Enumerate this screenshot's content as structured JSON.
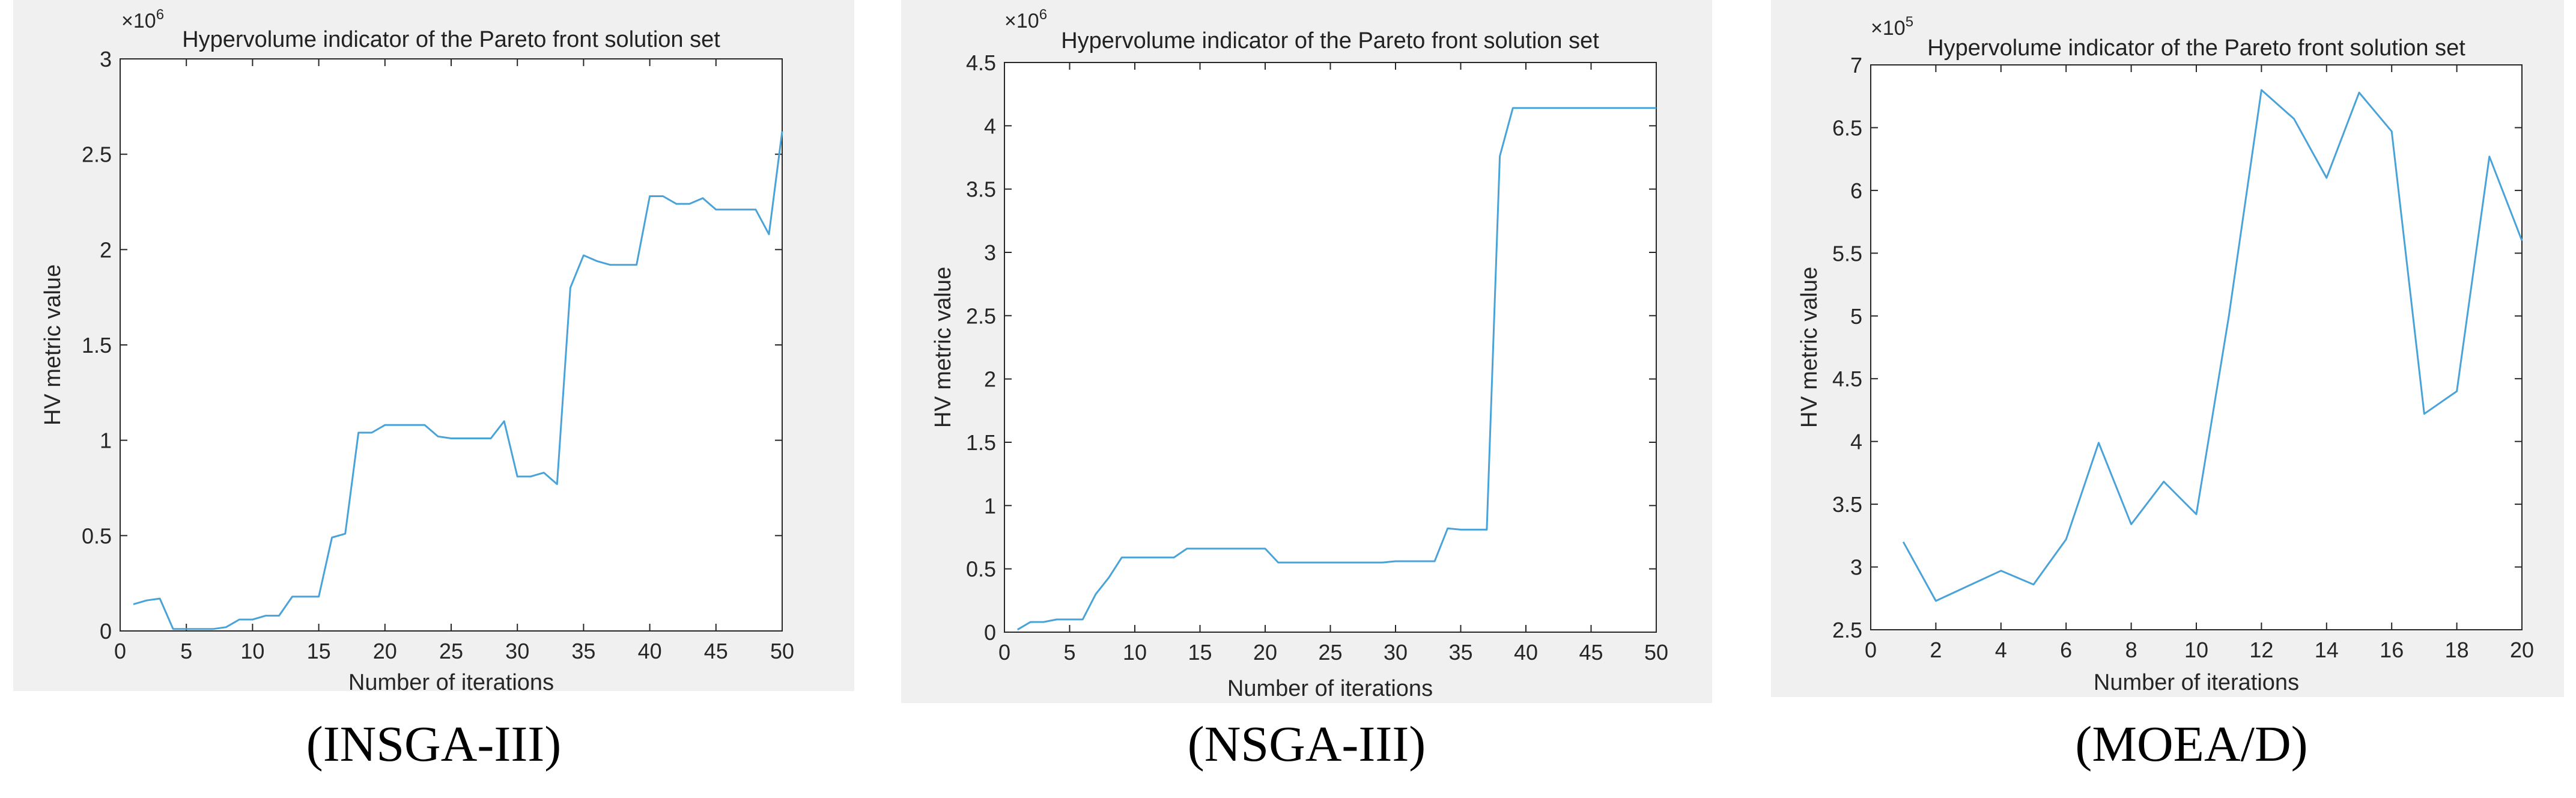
{
  "chart_data": [
    {
      "type": "line",
      "title": "Hypervolume indicator of the Pareto front solution set",
      "xlabel": "Number of iterations",
      "ylabel": "HV metric value",
      "y_exponent": "×10",
      "y_exponent_power": "6",
      "xlim": [
        0,
        50
      ],
      "ylim": [
        0,
        3
      ],
      "xticks": [
        0,
        5,
        10,
        15,
        20,
        25,
        30,
        35,
        40,
        45,
        50
      ],
      "yticks": [
        0,
        0.5,
        1,
        1.5,
        2,
        2.5,
        3
      ],
      "xtick_labels": [
        "0",
        "5",
        "10",
        "15",
        "20",
        "25",
        "30",
        "35",
        "40",
        "45",
        "50"
      ],
      "ytick_labels": [
        "0",
        "0.5",
        "1",
        "1.5",
        "2",
        "2.5",
        "3"
      ],
      "grid": false,
      "line_color": "#4aa3d8",
      "caption": "(INSGA-III)",
      "series": [
        {
          "x": [
            1,
            2,
            3,
            4,
            5,
            6,
            7,
            8,
            9,
            10,
            11,
            12,
            13,
            14,
            15,
            16,
            17,
            18,
            19,
            20,
            21,
            22,
            23,
            24,
            25,
            26,
            27,
            28,
            29,
            30,
            31,
            32,
            33,
            34,
            35,
            36,
            37,
            38,
            39,
            40,
            41,
            42,
            43,
            44,
            45,
            46,
            47,
            48,
            49,
            50
          ],
          "y": [
            0.14,
            0.16,
            0.17,
            0.01,
            0.01,
            0.01,
            0.01,
            0.02,
            0.06,
            0.06,
            0.08,
            0.08,
            0.18,
            0.18,
            0.18,
            0.49,
            0.51,
            1.04,
            1.04,
            1.08,
            1.08,
            1.08,
            1.08,
            1.02,
            1.01,
            1.01,
            1.01,
            1.01,
            1.1,
            0.81,
            0.81,
            0.83,
            0.77,
            1.8,
            1.97,
            1.94,
            1.92,
            1.92,
            1.92,
            2.28,
            2.28,
            2.24,
            2.24,
            2.27,
            2.21,
            2.21,
            2.21,
            2.21,
            2.08,
            2.62
          ]
        }
      ]
    },
    {
      "type": "line",
      "title": "Hypervolume indicator of the Pareto front solution set",
      "xlabel": "Number of iterations",
      "ylabel": "HV metric value",
      "y_exponent": "×10",
      "y_exponent_power": "6",
      "xlim": [
        0,
        50
      ],
      "ylim": [
        0,
        4.5
      ],
      "xticks": [
        0,
        5,
        10,
        15,
        20,
        25,
        30,
        35,
        40,
        45,
        50
      ],
      "yticks": [
        0,
        0.5,
        1,
        1.5,
        2,
        2.5,
        3,
        3.5,
        4,
        4.5
      ],
      "xtick_labels": [
        "0",
        "5",
        "10",
        "15",
        "20",
        "25",
        "30",
        "35",
        "40",
        "45",
        "50"
      ],
      "ytick_labels": [
        "0",
        "0.5",
        "1",
        "1.5",
        "2",
        "2.5",
        "3",
        "3.5",
        "4",
        "4.5"
      ],
      "grid": false,
      "line_color": "#4aa3d8",
      "caption": "(NSGA-III)",
      "series": [
        {
          "x": [
            1,
            2,
            3,
            4,
            5,
            6,
            7,
            8,
            9,
            10,
            11,
            12,
            13,
            14,
            15,
            16,
            17,
            18,
            19,
            20,
            21,
            22,
            23,
            24,
            25,
            26,
            27,
            28,
            29,
            30,
            31,
            32,
            33,
            34,
            35,
            36,
            37,
            38,
            39,
            40,
            41,
            42,
            43,
            44,
            45,
            46,
            47,
            48,
            49,
            50
          ],
          "y": [
            0.02,
            0.08,
            0.08,
            0.1,
            0.1,
            0.1,
            0.3,
            0.43,
            0.59,
            0.59,
            0.59,
            0.59,
            0.59,
            0.66,
            0.66,
            0.66,
            0.66,
            0.66,
            0.66,
            0.66,
            0.55,
            0.55,
            0.55,
            0.55,
            0.55,
            0.55,
            0.55,
            0.55,
            0.55,
            0.56,
            0.56,
            0.56,
            0.56,
            0.82,
            0.81,
            0.81,
            0.81,
            3.76,
            4.14,
            4.14,
            4.14,
            4.14,
            4.14,
            4.14,
            4.14,
            4.14,
            4.14,
            4.14,
            4.14,
            4.14
          ]
        }
      ]
    },
    {
      "type": "line",
      "title": "Hypervolume indicator of the Pareto front solution set",
      "xlabel": "Number of iterations",
      "ylabel": "HV metric value",
      "y_exponent": "×10",
      "y_exponent_power": "5",
      "xlim": [
        0,
        20
      ],
      "ylim": [
        2.5,
        7
      ],
      "xticks": [
        0,
        2,
        4,
        6,
        8,
        10,
        12,
        14,
        16,
        18,
        20
      ],
      "yticks": [
        2.5,
        3,
        3.5,
        4,
        4.5,
        5,
        5.5,
        6,
        6.5,
        7
      ],
      "xtick_labels": [
        "0",
        "2",
        "4",
        "6",
        "8",
        "10",
        "12",
        "14",
        "16",
        "18",
        "20"
      ],
      "ytick_labels": [
        "2.5",
        "3",
        "3.5",
        "4",
        "4.5",
        "5",
        "5.5",
        "6",
        "6.5",
        "7"
      ],
      "grid": false,
      "line_color": "#4aa3d8",
      "caption": "(MOEA/D)",
      "series": [
        {
          "x": [
            1,
            2,
            3,
            4,
            5,
            6,
            7,
            8,
            9,
            10,
            11,
            12,
            13,
            14,
            15,
            16,
            17,
            18,
            19,
            20
          ],
          "y": [
            3.2,
            2.73,
            2.85,
            2.97,
            2.86,
            3.22,
            3.99,
            3.34,
            3.68,
            3.42,
            5.0,
            6.8,
            6.57,
            6.1,
            6.78,
            6.47,
            4.22,
            4.4,
            6.27,
            5.6
          ]
        }
      ]
    }
  ]
}
